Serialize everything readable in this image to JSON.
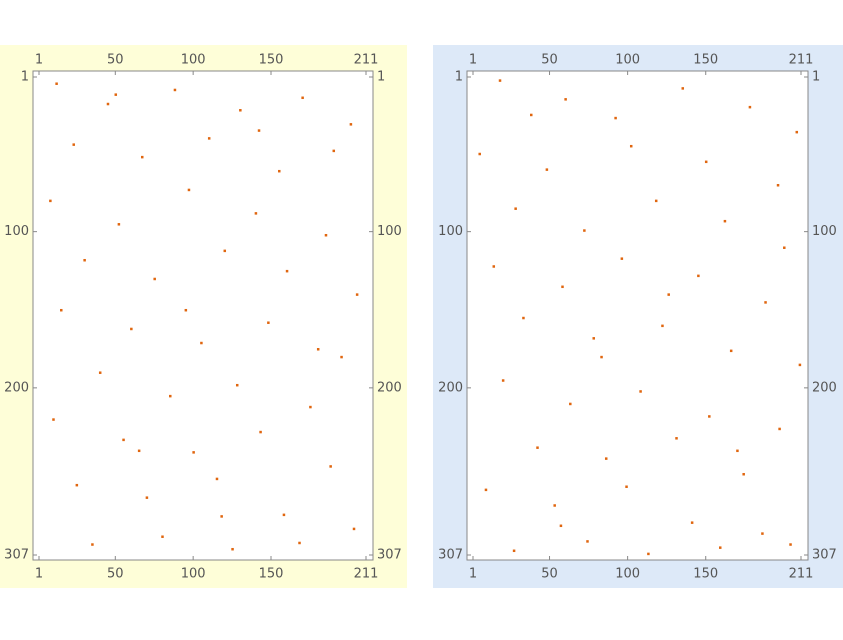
{
  "chart_data": [
    {
      "type": "matrix",
      "background": "#fefed8",
      "cell_color": "#e0660f",
      "xlim": [
        1,
        211
      ],
      "ylim": [
        1,
        307
      ],
      "xticks": [
        1,
        50,
        100,
        150,
        211
      ],
      "yticks": [
        1,
        100,
        200,
        307
      ],
      "points": [
        [
          12,
          5
        ],
        [
          45,
          18
        ],
        [
          88,
          9
        ],
        [
          130,
          22
        ],
        [
          170,
          14
        ],
        [
          201,
          31
        ],
        [
          23,
          44
        ],
        [
          67,
          52
        ],
        [
          110,
          40
        ],
        [
          155,
          61
        ],
        [
          190,
          48
        ],
        [
          8,
          80
        ],
        [
          52,
          95
        ],
        [
          97,
          73
        ],
        [
          140,
          88
        ],
        [
          185,
          102
        ],
        [
          30,
          118
        ],
        [
          75,
          130
        ],
        [
          120,
          112
        ],
        [
          160,
          125
        ],
        [
          205,
          140
        ],
        [
          15,
          150
        ],
        [
          60,
          162
        ],
        [
          105,
          171
        ],
        [
          148,
          158
        ],
        [
          195,
          180
        ],
        [
          40,
          190
        ],
        [
          85,
          205
        ],
        [
          128,
          198
        ],
        [
          175,
          212
        ],
        [
          10,
          220
        ],
        [
          55,
          233
        ],
        [
          100,
          241
        ],
        [
          143,
          228
        ],
        [
          188,
          250
        ],
        [
          25,
          262
        ],
        [
          70,
          270
        ],
        [
          115,
          258
        ],
        [
          158,
          281
        ],
        [
          203,
          290
        ],
        [
          35,
          300
        ],
        [
          80,
          295
        ],
        [
          125,
          303
        ],
        [
          168,
          299
        ],
        [
          50,
          12
        ],
        [
          142,
          35
        ],
        [
          95,
          150
        ],
        [
          180,
          175
        ],
        [
          65,
          240
        ],
        [
          118,
          282
        ]
      ]
    },
    {
      "type": "matrix",
      "background": "#dde9f8",
      "cell_color": "#e0660f",
      "xlim": [
        1,
        211
      ],
      "ylim": [
        1,
        307
      ],
      "xticks": [
        1,
        50,
        100,
        150,
        211
      ],
      "yticks": [
        1,
        100,
        200,
        307
      ],
      "points": [
        [
          18,
          3
        ],
        [
          60,
          15
        ],
        [
          92,
          27
        ],
        [
          135,
          8
        ],
        [
          178,
          20
        ],
        [
          208,
          36
        ],
        [
          5,
          50
        ],
        [
          48,
          60
        ],
        [
          102,
          45
        ],
        [
          150,
          55
        ],
        [
          196,
          70
        ],
        [
          28,
          85
        ],
        [
          72,
          99
        ],
        [
          118,
          80
        ],
        [
          162,
          93
        ],
        [
          200,
          110
        ],
        [
          14,
          122
        ],
        [
          58,
          135
        ],
        [
          96,
          117
        ],
        [
          145,
          128
        ],
        [
          188,
          145
        ],
        [
          33,
          155
        ],
        [
          78,
          168
        ],
        [
          122,
          160
        ],
        [
          166,
          176
        ],
        [
          210,
          185
        ],
        [
          20,
          195
        ],
        [
          63,
          210
        ],
        [
          108,
          202
        ],
        [
          152,
          218
        ],
        [
          197,
          226
        ],
        [
          42,
          238
        ],
        [
          86,
          245
        ],
        [
          131,
          232
        ],
        [
          174,
          255
        ],
        [
          9,
          265
        ],
        [
          53,
          275
        ],
        [
          99,
          263
        ],
        [
          141,
          286
        ],
        [
          186,
          293
        ],
        [
          27,
          304
        ],
        [
          74,
          298
        ],
        [
          113,
          306
        ],
        [
          159,
          302
        ],
        [
          204,
          300
        ],
        [
          38,
          25
        ],
        [
          126,
          140
        ],
        [
          83,
          180
        ],
        [
          170,
          240
        ],
        [
          57,
          288
        ]
      ]
    }
  ]
}
